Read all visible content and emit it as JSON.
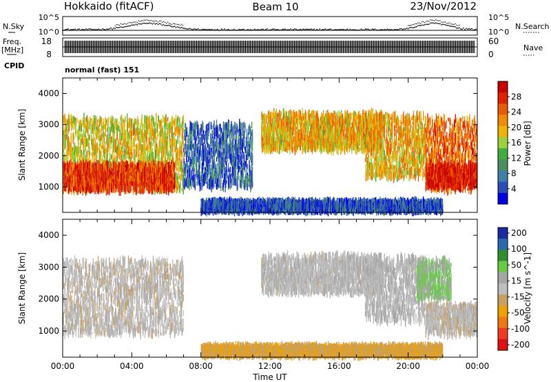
{
  "header": {
    "station": "Hokkaido (fitACF)",
    "beam": "Beam 10",
    "date": "23/Nov/2012"
  },
  "left_labels": {
    "nsky": "N.Sky",
    "freq": "Freq.",
    "freq_unit": "[MHz]",
    "cpid": "CPID"
  },
  "right_labels": {
    "nsearch": "N.Search",
    "nave": "Nave"
  },
  "noise_panel": {
    "left_ticks": [
      "10^5",
      "10^0"
    ],
    "right_ticks": [
      "10^5",
      "10^0"
    ]
  },
  "freq_panel": {
    "left_ticks": [
      "18",
      "8"
    ],
    "right_ticks": [
      "60",
      "0"
    ]
  },
  "cpid_text": "normal (fast) 151",
  "colors": {
    "scale": [
      "#0000e6",
      "#2a4db8",
      "#3f7fa8",
      "#4a8f5f",
      "#3fae3f",
      "#9bd23a",
      "#f0b400",
      "#f08a00",
      "#ea5a00",
      "#e02000",
      "#c80000"
    ],
    "velocity_scale": [
      "#e01010",
      "#f03a20",
      "#f07a10",
      "#f0a000",
      "#c8a060",
      "#bdbdbd",
      "#a6a6a6",
      "#66cc44",
      "#2f8f2f",
      "#2a6ab0",
      "#1a2aa0"
    ],
    "ground_scatter": "#aaaaaa"
  },
  "chart_data": [
    {
      "type": "heatmap",
      "title": "",
      "xlabel": "",
      "ylabel": "Slant Range [km]",
      "xlim": [
        "00:00",
        "24:00"
      ],
      "ylim": [
        180,
        4500
      ],
      "y_ticks": [
        1000,
        2000,
        3000,
        4000
      ],
      "colorbar": {
        "label": "Power [dB]",
        "ticks": [
          4,
          8,
          12,
          16,
          20,
          24,
          28
        ],
        "range": [
          0,
          32
        ]
      },
      "echo_regions": [
        {
          "t_start": 0.0,
          "t_end": 7.0,
          "r_min": 900,
          "r_max": 3200,
          "mean_db": 18
        },
        {
          "t_start": 0.0,
          "t_end": 6.5,
          "r_min": 900,
          "r_max": 1700,
          "mean_db": 27
        },
        {
          "t_start": 7.0,
          "t_end": 11.0,
          "r_min": 1000,
          "r_max": 3000,
          "mean_db": 6
        },
        {
          "t_start": 11.5,
          "t_end": 18.5,
          "r_min": 2200,
          "r_max": 3350,
          "mean_db": 20
        },
        {
          "t_start": 17.5,
          "t_end": 21.0,
          "r_min": 1300,
          "r_max": 3300,
          "mean_db": 20
        },
        {
          "t_start": 21.0,
          "t_end": 24.0,
          "r_min": 900,
          "r_max": 3200,
          "mean_db": 24
        },
        {
          "t_start": 21.0,
          "t_end": 24.0,
          "r_min": 1000,
          "r_max": 1700,
          "mean_db": 29
        },
        {
          "t_start": 8.0,
          "t_end": 22.0,
          "r_min": 250,
          "r_max": 500,
          "mean_db": 5
        }
      ]
    },
    {
      "type": "heatmap",
      "title": "",
      "xlabel": "Time UT",
      "ylabel": "Slant Range [km]",
      "xlim": [
        "00:00",
        "24:00"
      ],
      "ylim": [
        180,
        4500
      ],
      "y_ticks": [
        1000,
        2000,
        3000,
        4000
      ],
      "x_ticks": [
        "00:00",
        "04:00",
        "08:00",
        "12:00",
        "16:00",
        "20:00",
        "00:00"
      ],
      "colorbar": {
        "label": "Velocity [m s^-1]",
        "ticks": [
          200,
          100,
          50,
          15,
          -15,
          -50,
          -100,
          -200
        ],
        "range": [
          -250,
          250
        ]
      },
      "echo_regions": [
        {
          "t_start": 0.0,
          "t_end": 7.0,
          "r_min": 900,
          "r_max": 3200,
          "mean_vel": 0
        },
        {
          "t_start": 11.5,
          "t_end": 18.5,
          "r_min": 2200,
          "r_max": 3350,
          "mean_vel": 10
        },
        {
          "t_start": 17.5,
          "t_end": 21.0,
          "r_min": 1300,
          "r_max": 3300,
          "mean_vel": 20
        },
        {
          "t_start": 20.5,
          "t_end": 22.5,
          "r_min": 2000,
          "r_max": 3200,
          "mean_vel": 70
        },
        {
          "t_start": 21.0,
          "t_end": 24.0,
          "r_min": 900,
          "r_max": 1800,
          "mean_vel": 0
        },
        {
          "t_start": 8.0,
          "t_end": 22.0,
          "r_min": 250,
          "r_max": 500,
          "mean_vel": -60
        }
      ]
    }
  ]
}
